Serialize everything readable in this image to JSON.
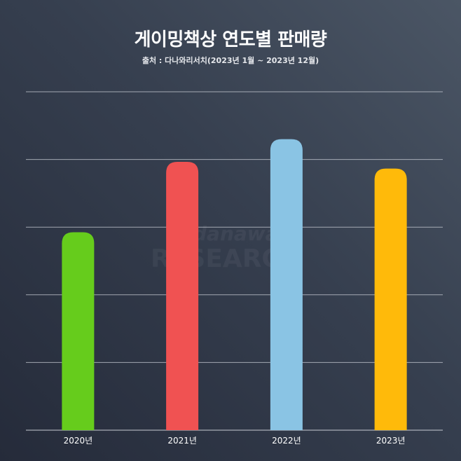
{
  "header": {
    "title": "게이밍책상 연도별 판매량",
    "source": "출처 : 다나와리서치(2023년 1월 ~ 2023년 12월)"
  },
  "watermark": {
    "line1": "danawa",
    "line2": "RESEARCH"
  },
  "chart_data": {
    "type": "bar",
    "title": "게이밍책상 연도별 판매량",
    "subtitle": "출처 : 다나와리서치(2023년 1월 ~ 2023년 12월)",
    "categories": [
      "2020년",
      "2021년",
      "2022년",
      "2023년"
    ],
    "values": [
      58.5,
      79.3,
      86.0,
      77.3
    ],
    "colors": [
      "#66cc1c",
      "#f05252",
      "#8ac4e4",
      "#ffba0a"
    ],
    "ylim": [
      0,
      100
    ],
    "y_gridlines": [
      0,
      20,
      40,
      60,
      80,
      100
    ],
    "grid": true,
    "y_tick_labels_shown": false,
    "legend": "none"
  }
}
